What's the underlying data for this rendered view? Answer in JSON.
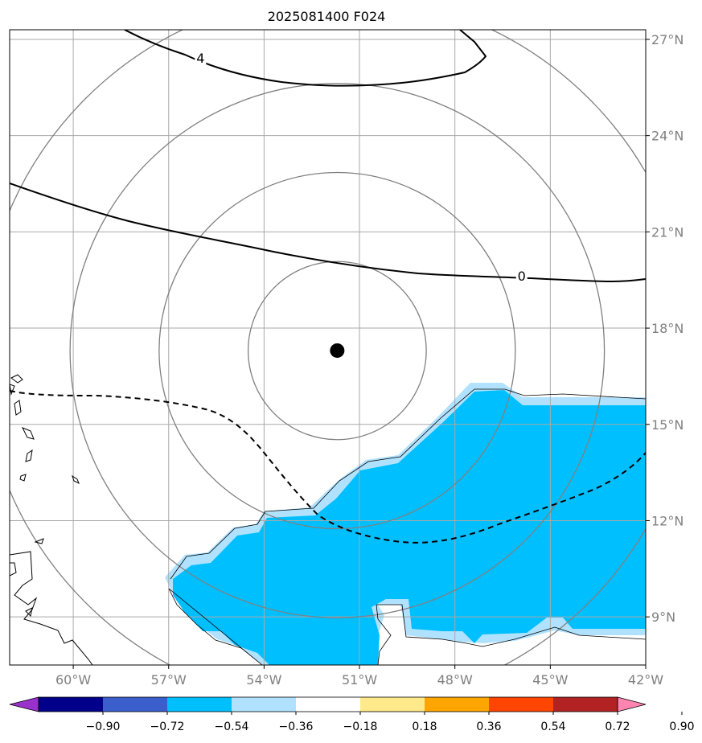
{
  "title": "2025081400 F024",
  "map": {
    "lon_range": [
      -62,
      -42
    ],
    "lat_range": [
      7.5,
      27.3
    ],
    "lon_ticks": [
      {
        "value": -60,
        "label": "60°W"
      },
      {
        "value": -57,
        "label": "57°W"
      },
      {
        "value": -54,
        "label": "54°W"
      },
      {
        "value": -51,
        "label": "51°W"
      },
      {
        "value": -48,
        "label": "48°W"
      },
      {
        "value": -45,
        "label": "45°W"
      },
      {
        "value": -42,
        "label": "42°W"
      }
    ],
    "lat_ticks": [
      {
        "value": 9,
        "label": "9°N"
      },
      {
        "value": 12,
        "label": "12°N"
      },
      {
        "value": 15,
        "label": "15°N"
      },
      {
        "value": 18,
        "label": "18°N"
      },
      {
        "value": 21,
        "label": "21°N"
      },
      {
        "value": 24,
        "label": "24°N"
      },
      {
        "value": 27,
        "label": "27°N"
      }
    ],
    "gridlines": true,
    "storm_center": {
      "lon": -51.7,
      "lat": 17.3
    },
    "range_rings_deg": [
      2.8,
      5.6,
      8.4,
      11.2
    ],
    "contour_labels": [
      {
        "text": "4",
        "lon": -56.0,
        "lat": 26.4
      },
      {
        "text": "0",
        "lon": -45.9,
        "lat": 19.6
      }
    ]
  },
  "colorbar": {
    "colors": [
      "#9932cc",
      "#00008b",
      "#3a5fcd",
      "#00bfff",
      "#b0e2ff",
      "#ffffff",
      "#ffe98a",
      "#ffa500",
      "#ff4500",
      "#b22222",
      "#ff84b0"
    ],
    "tick_labels": [
      "−0.90",
      "−0.72",
      "−0.54",
      "−0.36",
      "−0.18",
      "0.18",
      "0.36",
      "0.54",
      "0.72",
      "0.90"
    ]
  },
  "colors": {
    "shading_core": "#00bfff",
    "shading_edge": "#b0e2ff",
    "grid": "#a9a9a9",
    "ring": "#808080"
  }
}
